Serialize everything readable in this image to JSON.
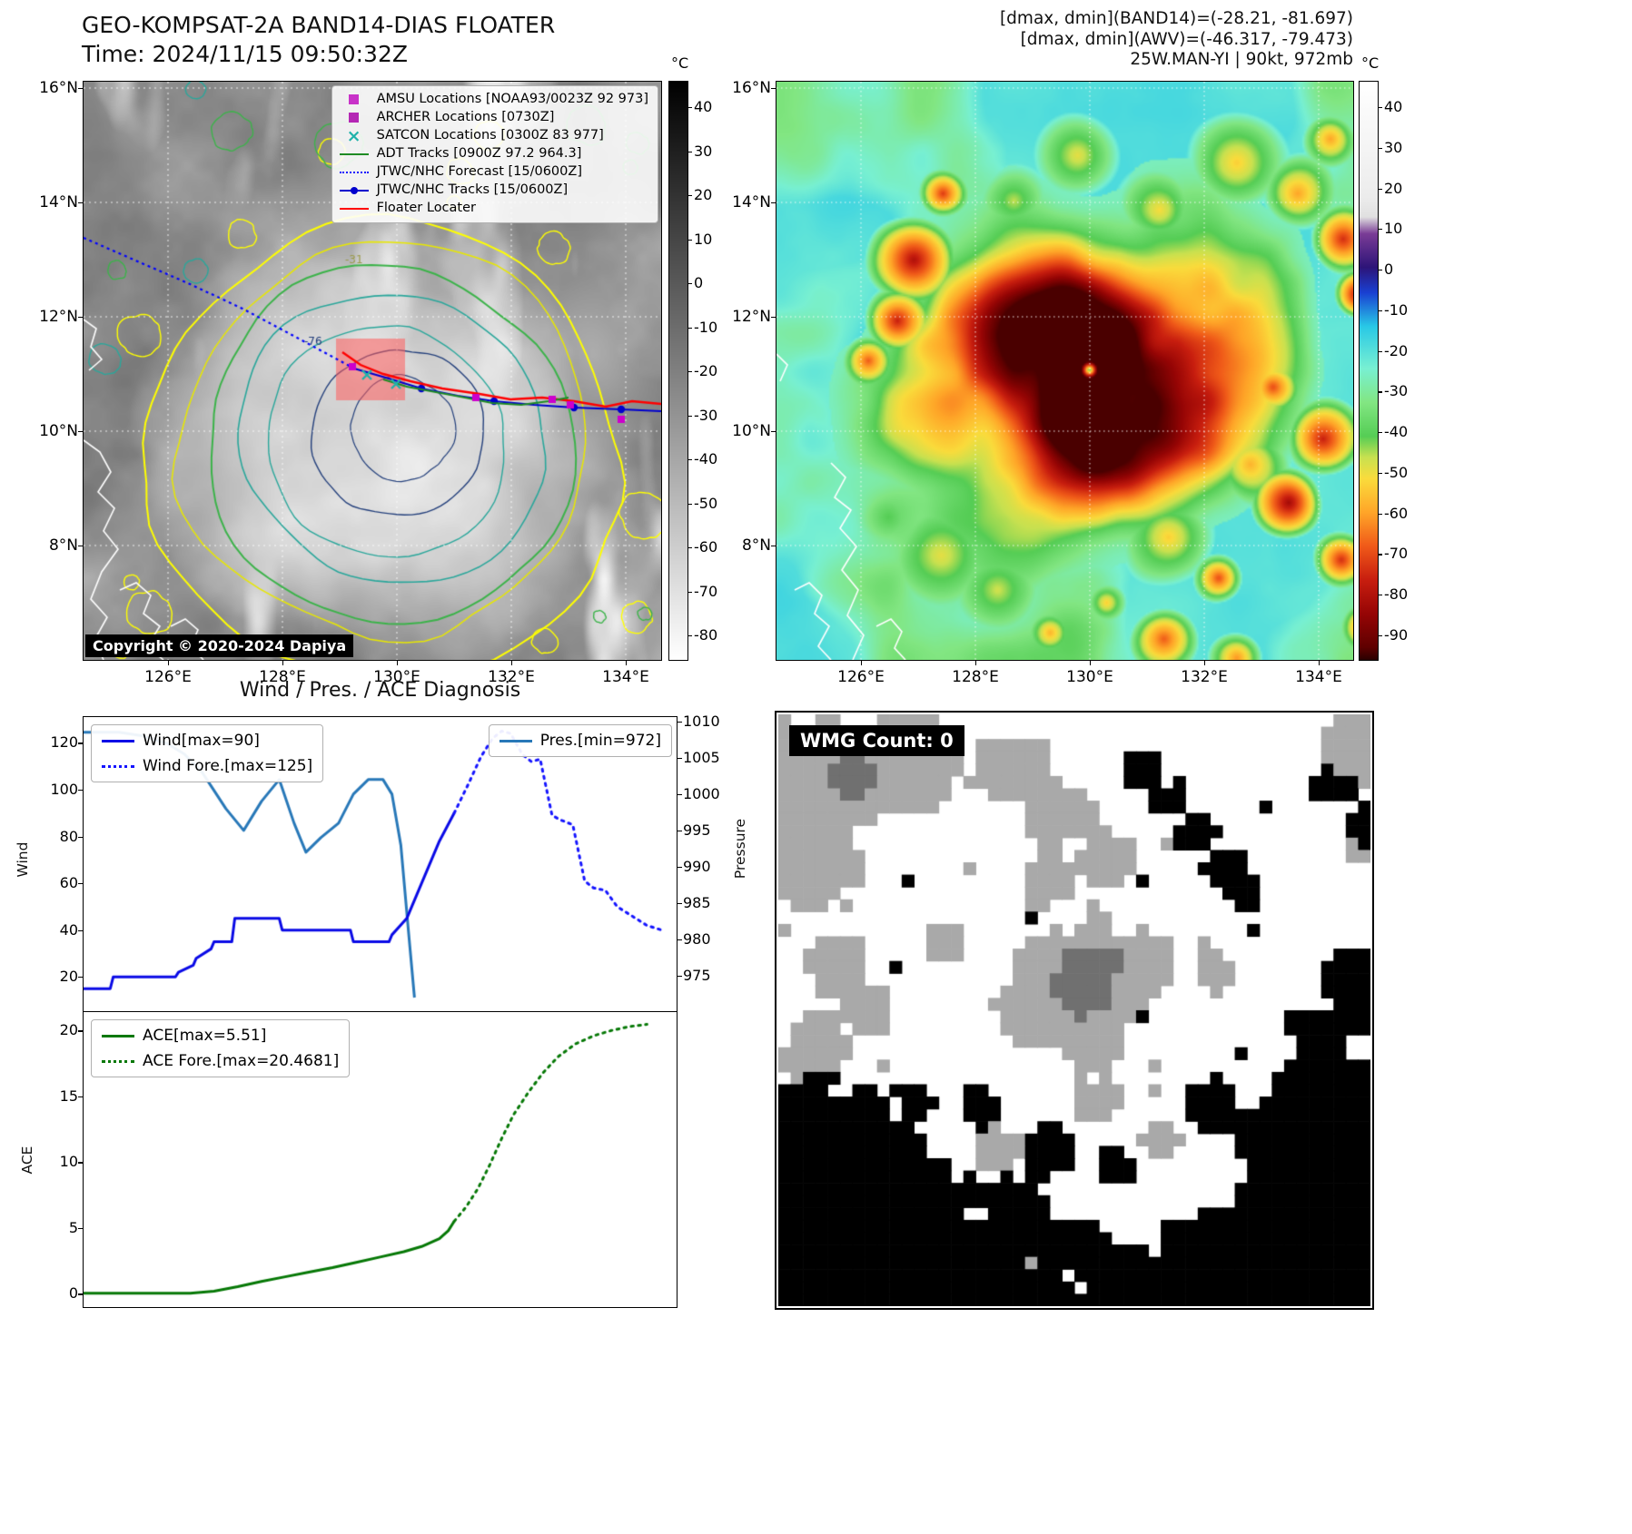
{
  "left_panel": {
    "title": "GEO-KOMPSAT-2A BAND14-DIAS FLOATER",
    "time": "Time: 2024/11/15 09:50:32Z",
    "copyright": "Copyright © 2020-2024 Dapiya",
    "lat_ticks": [
      "16°N",
      "14°N",
      "12°N",
      "10°N",
      "8°N"
    ],
    "lon_ticks": [
      "126°E",
      "128°E",
      "130°E",
      "132°E",
      "134°E"
    ],
    "colorbar": {
      "unit": "°C",
      "ticks": [
        "40",
        "30",
        "20",
        "10",
        "0",
        "-10",
        "-20",
        "-30",
        "-40",
        "-50",
        "-60",
        "-70",
        "-80"
      ]
    },
    "legend": [
      {
        "label": "AMSU Locations [NOAA93/0023Z 92 973]",
        "marker": "square",
        "color": "#c832c8"
      },
      {
        "label": "ARCHER Locations [0730Z]",
        "marker": "square",
        "color": "#b428b4"
      },
      {
        "label": "SATCON Locations [0300Z 83 977]",
        "marker": "x",
        "color": "#20b2aa"
      },
      {
        "label": "ADT Tracks [0900Z 97.2 964.3]",
        "marker": "line",
        "color": "#1f8b24"
      },
      {
        "label": "JTWC/NHC Forecast [15/0600Z]",
        "marker": "dotted",
        "color": "#1414ff"
      },
      {
        "label": "JTWC/NHC Tracks [15/0600Z]",
        "marker": "line-marker",
        "color": "#0000cd"
      },
      {
        "label": "Floater Locater",
        "marker": "line",
        "color": "#ff0000"
      }
    ]
  },
  "right_panel": {
    "header_lines": [
      "[dmax, dmin](BAND14)=(-28.21, -81.697)",
      "[dmax, dmin](AWV)=(-46.317, -79.473)",
      "25W.MAN-YI | 90kt, 972mb"
    ],
    "lat_ticks": [
      "16°N",
      "14°N",
      "12°N",
      "10°N",
      "8°N"
    ],
    "lon_ticks": [
      "126°E",
      "128°E",
      "130°E",
      "132°E",
      "134°E"
    ],
    "colorbar": {
      "unit": "°C",
      "ticks": [
        "40",
        "30",
        "20",
        "10",
        "0",
        "-10",
        "-20",
        "-30",
        "-40",
        "-50",
        "-60",
        "-70",
        "-80",
        "-90"
      ]
    }
  },
  "wmg_panel": {
    "label": "WMG Count: 0"
  },
  "chart_data": [
    {
      "type": "line",
      "title": "Wind / Pres. / ACE Diagnosis",
      "ylabel_left": "Wind",
      "ylabel_right": "Pressure",
      "ylim_left": [
        5,
        131
      ],
      "ylim_right": [
        970,
        1010.6
      ],
      "yticks_left": [
        "20",
        "40",
        "60",
        "80",
        "100",
        "120"
      ],
      "yticks_right": [
        "975",
        "980",
        "985",
        "990",
        "995",
        "1000",
        "1005",
        "1010"
      ],
      "legend_left": [
        {
          "label": "Wind[max=90]",
          "style": "solid",
          "color": "#0a0ae6"
        },
        {
          "label": "Wind Fore.[max=125]",
          "style": "dotted",
          "color": "#1414ff"
        }
      ],
      "legend_right": [
        {
          "label": "Pres.[min=972]",
          "style": "solid",
          "color": "#2878b8"
        }
      ],
      "series": [
        {
          "name": "Pres.",
          "axis": "right",
          "style": "solid",
          "color": "#2878b8",
          "x": [
            0.0,
            0.06,
            0.1,
            0.14,
            0.17,
            0.2,
            0.24,
            0.27,
            0.3,
            0.33,
            0.355,
            0.375,
            0.4,
            0.43,
            0.455,
            0.48,
            0.505,
            0.52,
            0.535,
            0.548,
            0.558
          ],
          "y": [
            1008.5,
            1008.5,
            1008,
            1007,
            1005.5,
            1003,
            998,
            995,
            999,
            1002,
            996,
            992,
            994,
            996,
            1000,
            1002,
            1002,
            1000,
            993,
            981,
            972
          ]
        },
        {
          "name": "Wind",
          "axis": "left",
          "style": "solid",
          "color": "#0a0ae6",
          "x": [
            0.0,
            0.045,
            0.05,
            0.155,
            0.16,
            0.185,
            0.19,
            0.215,
            0.22,
            0.25,
            0.255,
            0.33,
            0.335,
            0.45,
            0.455,
            0.515,
            0.52,
            0.545,
            0.57,
            0.6,
            0.625
          ],
          "y": [
            15,
            15,
            20,
            20,
            22,
            25,
            28,
            32,
            35,
            35,
            45,
            45,
            40,
            40,
            35,
            35,
            38,
            45,
            60,
            78,
            90
          ]
        },
        {
          "name": "Wind Fore.",
          "axis": "left",
          "style": "dotted",
          "color": "#1414ff",
          "x": [
            0.625,
            0.65,
            0.67,
            0.69,
            0.705,
            0.72,
            0.74,
            0.755,
            0.77,
            0.79,
            0.805,
            0.825,
            0.845,
            0.86,
            0.88,
            0.9,
            0.925,
            0.95,
            0.975
          ],
          "y": [
            90,
            103,
            114,
            122,
            125,
            124,
            115,
            112,
            113,
            89,
            87,
            85,
            61,
            58,
            57,
            50,
            46,
            42,
            40
          ]
        }
      ]
    },
    {
      "type": "line",
      "ylabel_left": "ACE",
      "ylim_left": [
        -1.0,
        21.4
      ],
      "yticks_left": [
        "0",
        "5",
        "10",
        "15",
        "20"
      ],
      "legend_left": [
        {
          "label": "ACE[max=5.51]",
          "style": "solid",
          "color": "#067806"
        },
        {
          "label": "ACE Fore.[max=20.4681]",
          "style": "dotted",
          "color": "#067806"
        }
      ],
      "series": [
        {
          "name": "ACE",
          "axis": "left",
          "style": "solid",
          "color": "#067806",
          "x": [
            0.0,
            0.18,
            0.22,
            0.26,
            0.3,
            0.34,
            0.38,
            0.42,
            0.46,
            0.5,
            0.54,
            0.57,
            0.6,
            0.615,
            0.625
          ],
          "y": [
            0.05,
            0.05,
            0.2,
            0.55,
            0.95,
            1.3,
            1.65,
            2.0,
            2.4,
            2.8,
            3.2,
            3.6,
            4.2,
            4.8,
            5.51
          ]
        },
        {
          "name": "ACE Fore.",
          "axis": "left",
          "style": "dotted",
          "color": "#067806",
          "x": [
            0.625,
            0.645,
            0.665,
            0.685,
            0.705,
            0.725,
            0.75,
            0.775,
            0.8,
            0.83,
            0.86,
            0.89,
            0.92,
            0.95
          ],
          "y": [
            5.51,
            6.6,
            8.0,
            9.8,
            11.8,
            13.6,
            15.3,
            16.8,
            18.0,
            19.0,
            19.6,
            20.0,
            20.3,
            20.4681
          ]
        }
      ]
    }
  ]
}
